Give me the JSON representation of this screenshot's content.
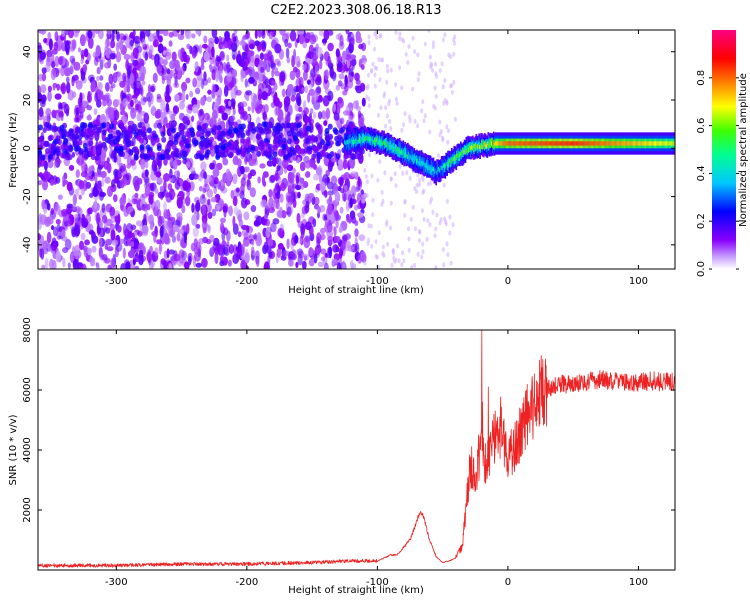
{
  "figure": {
    "title": "C2E2.2023.308.06.18.R13"
  },
  "chart_data": [
    {
      "type": "heatmap",
      "title": "C2E2.2023.308.06.18.R13",
      "xlabel": "Height of straight line (km)",
      "ylabel": "Frequency (Hz)",
      "xlim": [
        -360,
        128
      ],
      "ylim": [
        -50,
        49
      ],
      "x_ticks": [
        -300,
        -200,
        -100,
        0,
        100
      ],
      "y_ticks": [
        -40,
        -20,
        0,
        20,
        40
      ],
      "colorbar": {
        "label": "Normalized spectral amplitude",
        "range": [
          0.0,
          1.0
        ],
        "ticks": [
          0.0,
          0.2,
          0.4,
          0.6,
          0.8
        ],
        "colors": [
          "#ffffff",
          "#8a00ff",
          "#0000ff",
          "#00c8ff",
          "#00ff90",
          "#40ff00",
          "#ffff00",
          "#ff8000",
          "#ff0000",
          "#ff0080"
        ]
      },
      "noise_region_x": [
        -360,
        -110
      ],
      "signal_path": {
        "x": [
          -125,
          -110,
          -100,
          -90,
          -80,
          -70,
          -60,
          -55,
          -50,
          -40,
          -30,
          -20,
          -10,
          0,
          50,
          128
        ],
        "frequency": [
          2,
          4,
          3,
          1,
          -2,
          -5,
          -8,
          -10,
          -8,
          -4,
          0,
          1,
          2,
          2,
          2,
          2
        ],
        "amplitude": [
          0.4,
          0.5,
          0.55,
          0.5,
          0.5,
          0.45,
          0.45,
          0.4,
          0.45,
          0.55,
          0.6,
          0.65,
          0.7,
          0.8,
          0.85,
          0.65
        ]
      }
    },
    {
      "type": "line",
      "xlabel": "Height of straight line (km)",
      "ylabel": "SNR (10 * v/v)",
      "xlim": [
        -360,
        128
      ],
      "ylim": [
        0,
        8000
      ],
      "x_ticks": [
        -300,
        -200,
        -100,
        0,
        100
      ],
      "y_ticks": [
        2000,
        4000,
        6000,
        8000
      ],
      "color": "#ee2222",
      "series": [
        {
          "name": "SNR",
          "x": [
            -360,
            -300,
            -250,
            -200,
            -150,
            -120,
            -100,
            -90,
            -85,
            -80,
            -75,
            -70,
            -67,
            -65,
            -60,
            -55,
            -50,
            -45,
            -40,
            -35,
            -30,
            -28,
            -25,
            -22,
            -20,
            -18,
            -15,
            -10,
            -5,
            0,
            5,
            10,
            15,
            20,
            25,
            30,
            40,
            50,
            60,
            70,
            80,
            90,
            100,
            110,
            128
          ],
          "y": [
            150,
            150,
            200,
            200,
            250,
            300,
            300,
            500,
            500,
            750,
            1000,
            1600,
            2000,
            1800,
            1000,
            450,
            250,
            300,
            400,
            800,
            3000,
            3500,
            2800,
            3900,
            5200,
            3400,
            3700,
            4500,
            4800,
            3900,
            4000,
            4600,
            5100,
            5600,
            5900,
            6000,
            6200,
            6200,
            6250,
            6350,
            6300,
            6250,
            6250,
            6300,
            6250
          ]
        }
      ],
      "spikes": [
        {
          "x": -20,
          "y": 8000
        },
        {
          "x": -15,
          "y": 6100
        }
      ]
    }
  ]
}
